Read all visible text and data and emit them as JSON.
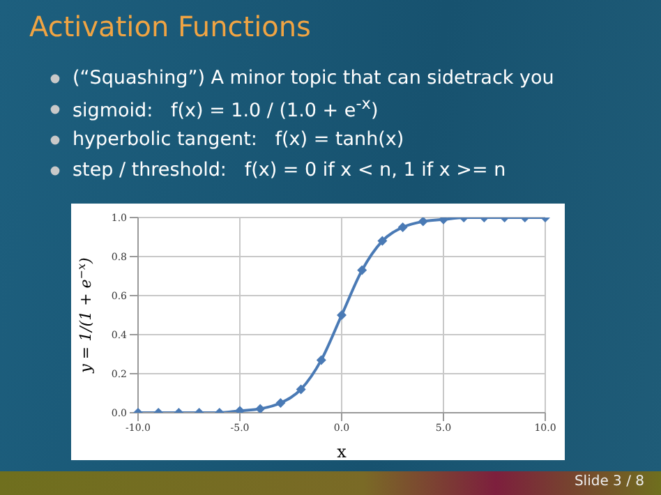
{
  "chart_data": {
    "type": "line",
    "title": "Activation Functions",
    "annotations": [
      "(“Squashing”) A minor topic that can sidetrack you",
      "sigmoid:   f(x) = 1.0 / (1.0 + e$^{-x}$)",
      "hyperbolic tangent:   f(x) = tanh(x)",
      "step / threshold:   f(x) = 0 if x < n, 1 if x >= n",
      "Slide 3 / 8"
    ],
    "xlabel": "x",
    "ylabel": "y = 1/(1 + e$^{−x}$)",
    "x": [
      -10,
      -9,
      -8,
      -7,
      -6,
      -5,
      -4,
      -3,
      -2,
      -1,
      0,
      1,
      2,
      3,
      4,
      5,
      6,
      7,
      8,
      9,
      10
    ],
    "series": [
      {
        "color": "#4a7ab5",
        "values": [
          0.0,
          0.0,
          0.0,
          0.0,
          0.0,
          0.01,
          0.02,
          0.05,
          0.12,
          0.27,
          0.5,
          0.73,
          0.88,
          0.95,
          0.98,
          0.99,
          1.0,
          1.0,
          1.0,
          1.0,
          1.0
        ]
      }
    ],
    "xlim": [
      -10,
      10
    ],
    "xticks": [
      {
        "value": -10,
        "label": "-10.0"
      },
      {
        "value": -5,
        "label": "-5.0"
      },
      {
        "value": 0,
        "label": "0.0"
      },
      {
        "value": 5,
        "label": "5.0"
      },
      {
        "value": 10,
        "label": "10.0"
      }
    ],
    "ylim": [
      0,
      1
    ],
    "yticks": [
      {
        "value": 0,
        "label": "0.0"
      },
      {
        "value": 0.2,
        "label": "0.2"
      },
      {
        "value": 0.4,
        "label": "0.4"
      },
      {
        "value": 0.6,
        "label": "0.6"
      },
      {
        "value": 0.8,
        "label": "0.8"
      },
      {
        "value": 1,
        "label": "1.0"
      }
    ],
    "grid": true,
    "marker": "diamond",
    "line_style": "solid"
  }
}
